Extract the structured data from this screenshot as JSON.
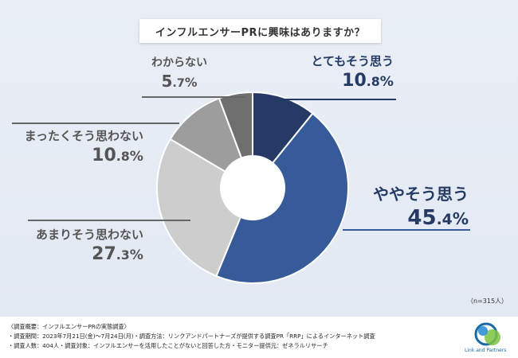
{
  "chart_data": {
    "type": "pie",
    "variant": "donut",
    "title": "インフルエンサーPRに興味はありますか？",
    "sample_note": "（n=315人）",
    "slices": [
      {
        "name": "とてもそう思う",
        "value": 10.8,
        "value_int": "10",
        "value_dec": ".8",
        "color": "#253a64"
      },
      {
        "name": "ややそう思う",
        "value": 45.4,
        "value_int": "45",
        "value_dec": ".4",
        "color": "#365b98"
      },
      {
        "name": "あまりそう思わない",
        "value": 27.3,
        "value_int": "27",
        "value_dec": ".3",
        "color": "#cdcdcd"
      },
      {
        "name": "まったくそう思わない",
        "value": 10.8,
        "value_int": "10",
        "value_dec": ".8",
        "color": "#9d9d9d"
      },
      {
        "name": "わからない",
        "value": 5.7,
        "value_int": "5",
        "value_dec": ".7",
        "color": "#6f6f6f"
      }
    ],
    "percent_sign": "%"
  },
  "footer": {
    "line1": "〈調査概要：インフルエンサーPRの実態調査〉",
    "line2": "・調査期間：2023年7月21日(金)〜7月24日(月)・調査方法：リンクアンドパートナーズが提供する調査PR「RRP」によるインターネット調査",
    "line3": "・調査人数：404人・調査対象：インフルエンサーを活用したことがないと回答した方・モニター提供元：ゼネラルリサーチ"
  },
  "logo": {
    "text": "Link and Partners",
    "icon": "link-and-partners-logo-icon"
  }
}
